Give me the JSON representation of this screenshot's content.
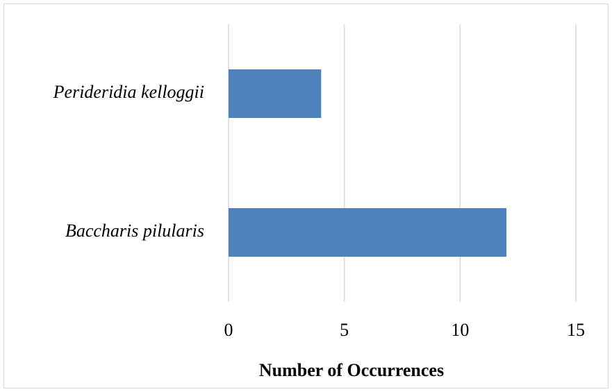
{
  "chart_data": {
    "type": "bar",
    "orientation": "horizontal",
    "x_label": "Number of Occurrences",
    "categories": [
      "Perideridia kelloggii",
      "Baccharis pilularis"
    ],
    "values": [
      4,
      12
    ],
    "color": "#4f81bd",
    "xlim": [
      0,
      15
    ],
    "xticks": [
      0,
      5,
      10,
      15
    ],
    "grid": true
  }
}
